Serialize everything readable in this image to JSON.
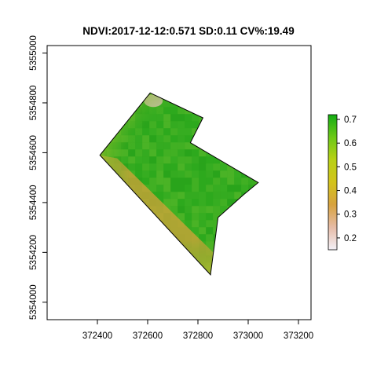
{
  "title": "NDVI:2017-12-12:0.571 SD:0.11 CV%:19.49",
  "map": {
    "x_ticks": [
      "372400",
      "372600",
      "372800",
      "373000",
      "373200"
    ],
    "y_ticks": [
      "5354000",
      "5354200",
      "5354400",
      "5354600",
      "5354800",
      "5355000"
    ],
    "x_range": [
      372200,
      373250
    ],
    "y_range": [
      5353930,
      5355030
    ],
    "field_boundary": [
      [
        372610,
        5354840
      ],
      [
        372820,
        5354740
      ],
      [
        372770,
        5354640
      ],
      [
        373040,
        5354480
      ],
      [
        372980,
        5354430
      ],
      [
        372880,
        5354340
      ],
      [
        372850,
        5354110
      ],
      [
        372410,
        5354590
      ]
    ]
  },
  "legend": {
    "ticks": [
      "0.2",
      "0.3",
      "0.4",
      "0.5",
      "0.6",
      "0.7"
    ],
    "range": [
      0.15,
      0.72
    ],
    "colors": [
      "#f3f0f7",
      "#e6bba6",
      "#d7a23e",
      "#d3c31b",
      "#b8d115",
      "#6cc816",
      "#13ad13"
    ]
  },
  "colors": {
    "high_ndvi": "#2aa81c",
    "mid_ndvi": "#5bb82a",
    "low_ndvi": "#d6a33a",
    "very_low_ndvi": "#e2c3b5"
  }
}
